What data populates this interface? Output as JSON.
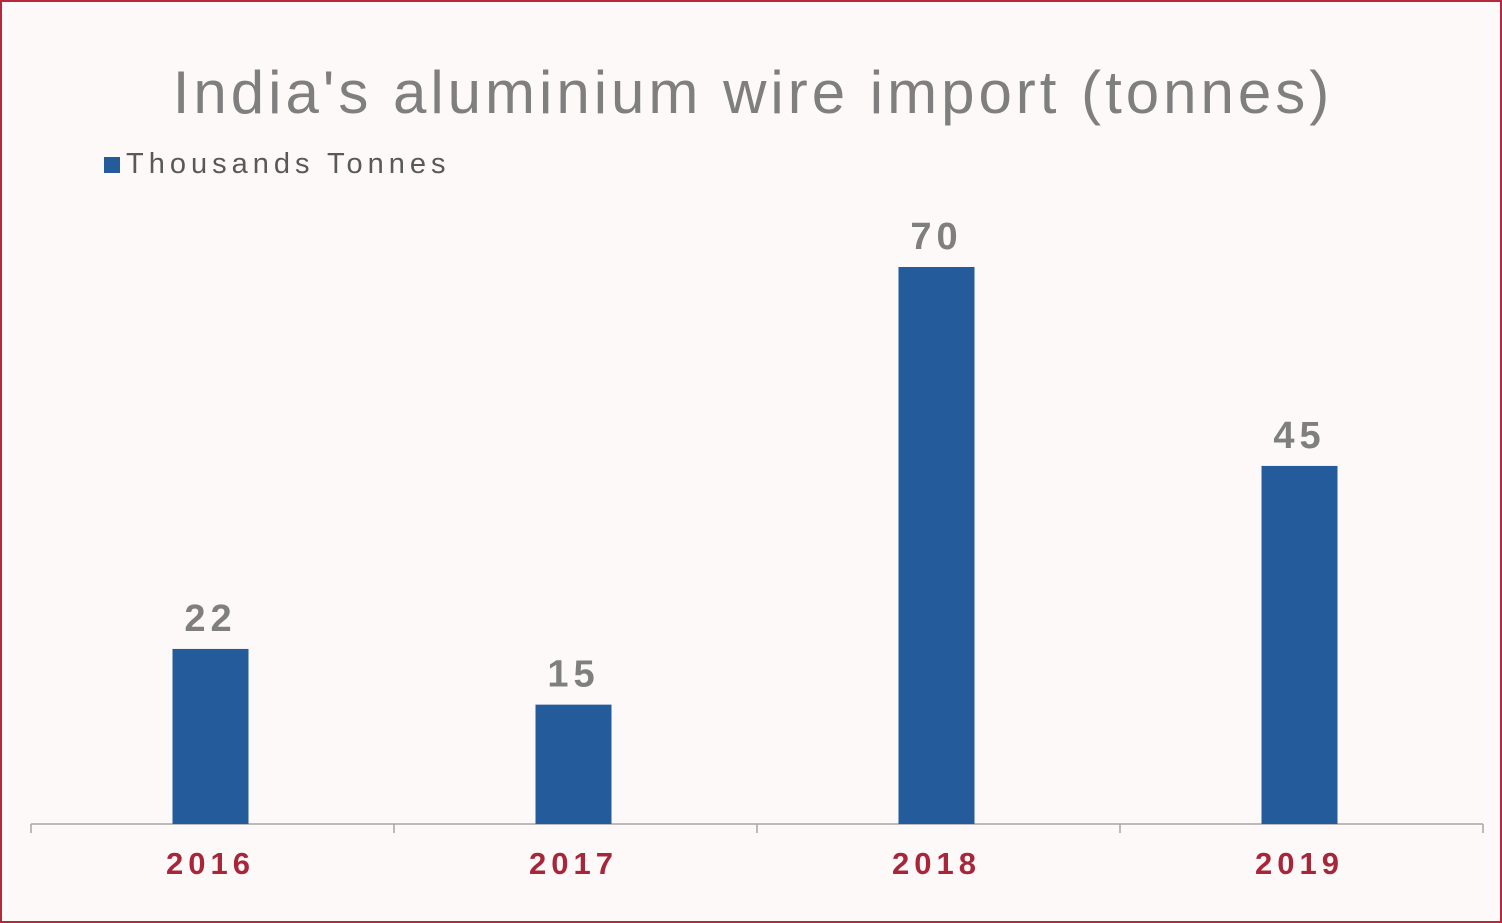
{
  "chart_data": {
    "type": "bar",
    "title": "India's aluminium wire import (tonnes)",
    "categories": [
      "2016",
      "2017",
      "2018",
      "2019"
    ],
    "series": [
      {
        "name": "Thousands Tonnes",
        "values": [
          22,
          15,
          70,
          45
        ]
      }
    ],
    "xlabel": "",
    "ylabel": "",
    "ylim": [
      0,
      75
    ],
    "legend_position": "top-left",
    "grid": false,
    "data_labels": true
  },
  "colors": {
    "bar": "#245b9a",
    "tick_label": "#a8263a",
    "frame_border": "#b5283e",
    "axis": "#a6a6a6"
  }
}
